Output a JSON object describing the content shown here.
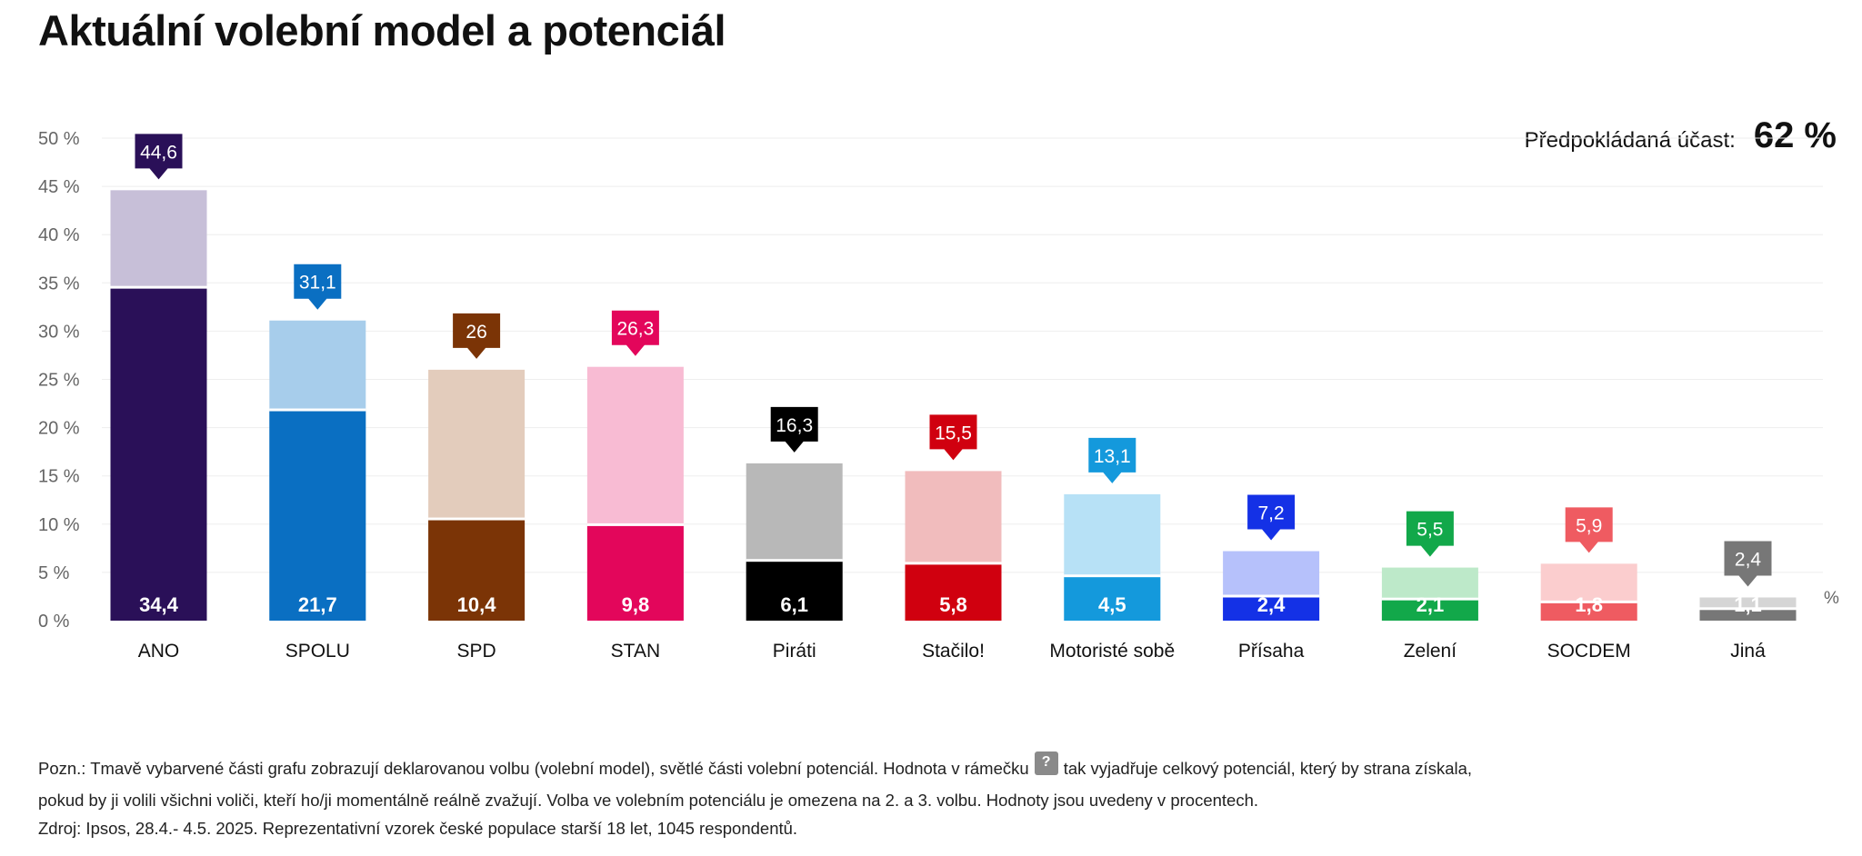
{
  "title": "Aktuální volební model a potenciál",
  "turnout": {
    "label": "Předpokládaná účast:",
    "value": "62 %"
  },
  "colors": {
    "ANO": {
      "dark": "#2a1058",
      "light": "#c7bfd8"
    },
    "SPOLU": {
      "dark": "#0a6fc2",
      "light": "#a7cdeb"
    },
    "SPD": {
      "dark": "#7b3406",
      "light": "#e3ccbc"
    },
    "STAN": {
      "dark": "#e3065b",
      "light": "#f8bbd3"
    },
    "Piráti": {
      "dark": "#000000",
      "light": "#b8b8b8"
    },
    "Stačilo!": {
      "dark": "#d0000f",
      "light": "#f1bcbd"
    },
    "Motoristé sobě": {
      "dark": "#1499dc",
      "light": "#b7e1f6"
    },
    "Přísaha": {
      "dark": "#1431e6",
      "light": "#b6c1fb"
    },
    "Zelení": {
      "dark": "#12a84a",
      "light": "#bde9c9"
    },
    "SOCDEM": {
      "dark": "#ef5b61",
      "light": "#fbcdce"
    },
    "Jiná": {
      "dark": "#777777",
      "light": "#d5d5d5"
    }
  },
  "chart_data": {
    "type": "bar",
    "categories": [
      "ANO",
      "SPOLU",
      "SPD",
      "STAN",
      "Piráti",
      "Stačilo!",
      "Motoristé sobě",
      "Přísaha",
      "Zelení",
      "SOCDEM",
      "Jiná"
    ],
    "series": [
      {
        "values": [
          34.4,
          21.7,
          10.4,
          9.8,
          6.1,
          5.8,
          4.5,
          2.4,
          2.1,
          1.8,
          1.1
        ],
        "labels": [
          "34,4",
          "21,7",
          "10,4",
          "9,8",
          "6,1",
          "5,8",
          "4,5",
          "2,4",
          "2,1",
          "1,8",
          "1,1"
        ]
      },
      {
        "values": [
          44.6,
          31.1,
          26,
          26.3,
          16.3,
          15.5,
          13.1,
          7.2,
          5.5,
          5.9,
          2.4
        ],
        "labels": [
          "44,6",
          "31,1",
          "26",
          "26,3",
          "16,3",
          "15,5",
          "13,1",
          "7,2",
          "5,5",
          "5,9",
          "2,4"
        ]
      }
    ],
    "yticks": [
      "0 %",
      "5 %",
      "10 %",
      "15 %",
      "20 %",
      "25 %",
      "30 %",
      "35 %",
      "40 %",
      "45 %",
      "50 %"
    ],
    "ylim": [
      0,
      50
    ],
    "unit_label": "%",
    "grid": true
  },
  "notes": {
    "line1_a": "Pozn.: Tmavě vybarvené části grafu zobrazují deklarovanou volbu (volební model), světlé části volební potenciál. Hodnota v rámečku",
    "badge": "?",
    "line1_b": "tak vyjadřuje celkový potenciál, který by strana získala,",
    "line2": "pokud by ji volili všichni voliči, kteří ho/ji momentálně reálně zvažují. Volba ve volebním potenciálu je omezena na 2. a 3. volbu. Hodnoty jsou uvedeny v procentech."
  },
  "source": "Zdroj: Ipsos, 28.4.- 4.5. 2025. Reprezentativní vzorek české populace starší 18 let, 1045 respondentů."
}
